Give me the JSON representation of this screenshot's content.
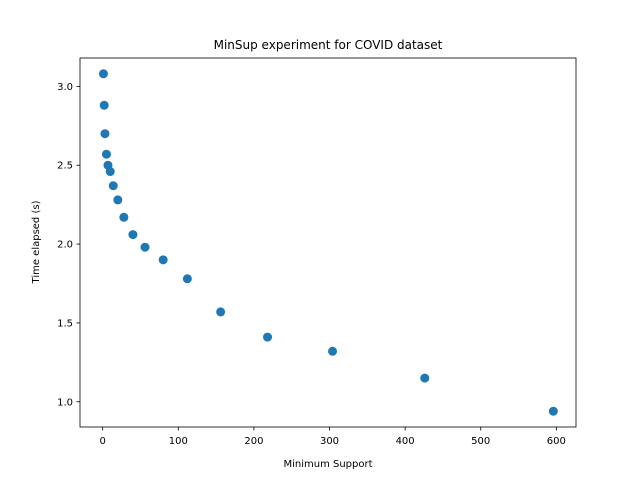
{
  "chart_data": {
    "type": "scatter",
    "title": "MinSup experiment for COVID dataset",
    "xlabel": "Minimum Support",
    "ylabel": "Time elapsed (s)",
    "xlim": [
      -30,
      626
    ],
    "ylim": [
      0.84,
      3.18
    ],
    "xticks": [
      0,
      100,
      200,
      300,
      400,
      500,
      600
    ],
    "yticks": [
      1.0,
      1.5,
      2.0,
      2.5,
      3.0
    ],
    "xtick_labels": [
      "0",
      "100",
      "200",
      "300",
      "400",
      "500",
      "600"
    ],
    "ytick_labels": [
      "1.0",
      "1.5",
      "2.0",
      "2.5",
      "3.0"
    ],
    "grid": false,
    "marker_color": "#1f77b4",
    "points": [
      {
        "x": 1,
        "y": 3.08
      },
      {
        "x": 2,
        "y": 2.88
      },
      {
        "x": 3,
        "y": 2.7
      },
      {
        "x": 5,
        "y": 2.57
      },
      {
        "x": 7,
        "y": 2.5
      },
      {
        "x": 10,
        "y": 2.46
      },
      {
        "x": 14,
        "y": 2.37
      },
      {
        "x": 20,
        "y": 2.28
      },
      {
        "x": 28,
        "y": 2.17
      },
      {
        "x": 40,
        "y": 2.06
      },
      {
        "x": 56,
        "y": 1.98
      },
      {
        "x": 80,
        "y": 1.9
      },
      {
        "x": 112,
        "y": 1.78
      },
      {
        "x": 156,
        "y": 1.57
      },
      {
        "x": 218,
        "y": 1.41
      },
      {
        "x": 304,
        "y": 1.32
      },
      {
        "x": 426,
        "y": 1.15
      },
      {
        "x": 596,
        "y": 0.94
      }
    ]
  }
}
